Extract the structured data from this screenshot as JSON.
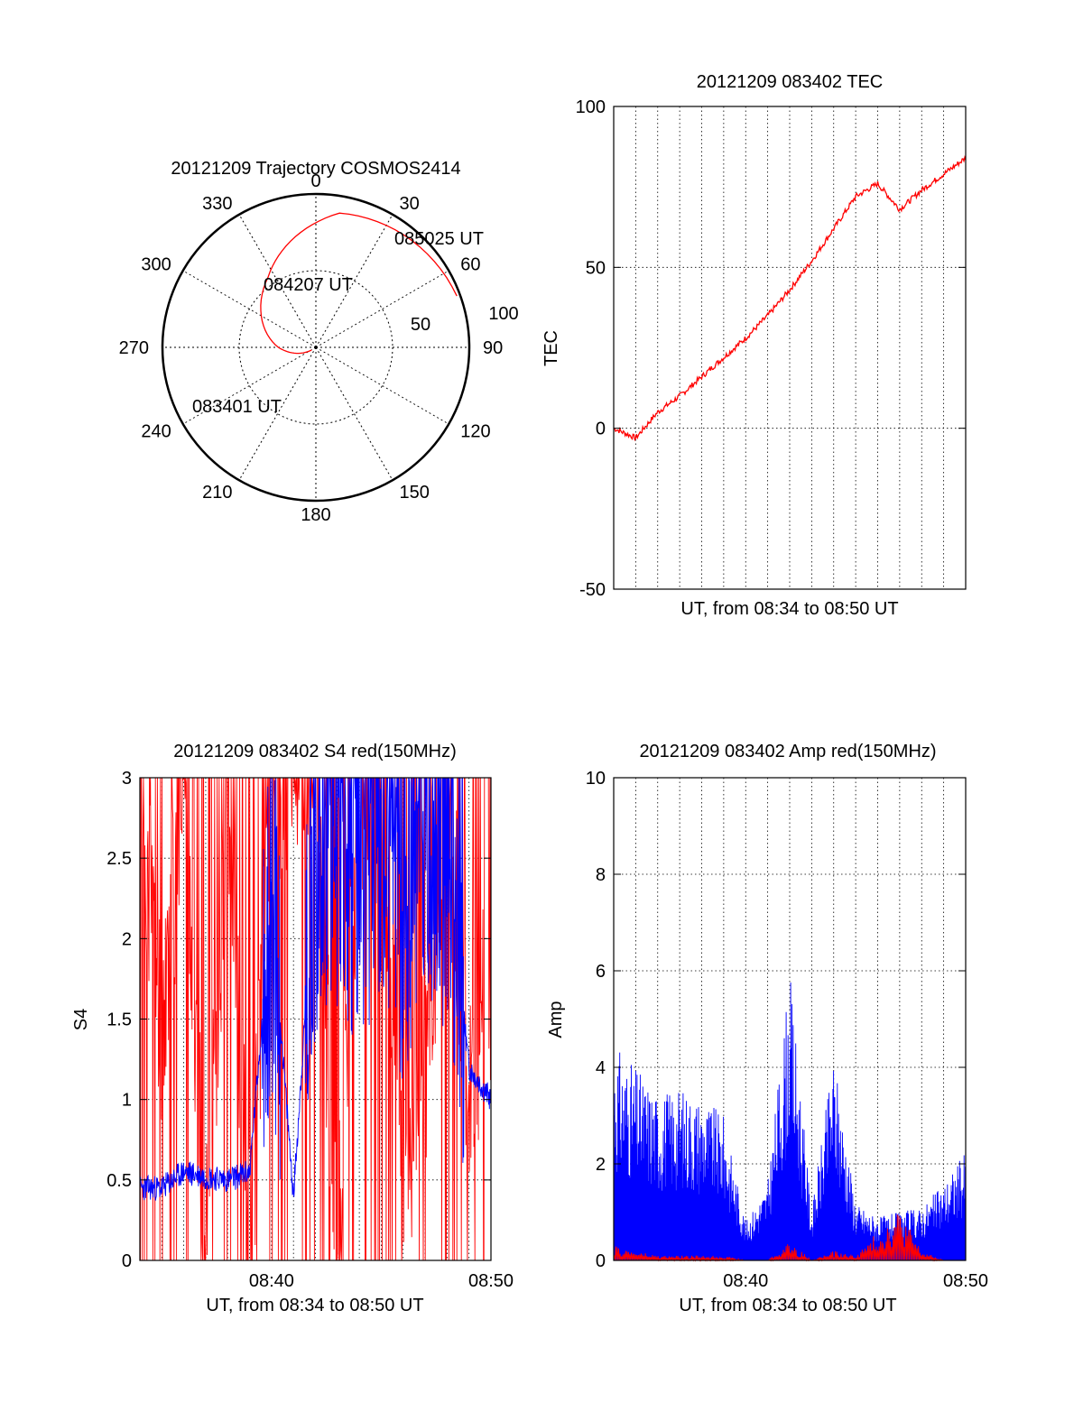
{
  "colors": {
    "red": "#ff0000",
    "blue": "#0000ff",
    "axis": "#000000",
    "grid": "#000000"
  },
  "chart_data": [
    {
      "type": "polar",
      "title": "20121209 Trajectory COSMOS2414",
      "azimuth_labels": [
        "0",
        "30",
        "60",
        "90",
        "120",
        "150",
        "180",
        "210",
        "240",
        "270",
        "300",
        "330"
      ],
      "radius_labels": [
        "50",
        "100"
      ],
      "grid": true,
      "series": [
        {
          "color": "#ff0000",
          "points": [
            {
              "az": 70,
              "el": 2,
              "time": "085025 UT"
            },
            {
              "az": 10,
              "el": 10
            },
            {
              "az": 326,
              "el": 40,
              "time": "084207 UT"
            },
            {
              "az": 270,
              "el": 68
            },
            {
              "az": 238,
              "el": 87,
              "time": "083401 UT"
            }
          ]
        }
      ],
      "annotations": [
        "085025 UT",
        "084207 UT",
        "083401 UT"
      ]
    },
    {
      "type": "line",
      "title": "20121209 083402 TEC",
      "xlabel": "UT, from 08:34 to 08:50 UT",
      "ylabel": "TEC",
      "xlim": [
        "08:34",
        "08:50"
      ],
      "ylim": [
        -50,
        100
      ],
      "yticks": [
        "-50",
        "0",
        "50",
        "100"
      ],
      "grid": true,
      "series": [
        {
          "color": "#ff0000",
          "x": [
            "08:34",
            "08:35",
            "08:36",
            "08:37",
            "08:38",
            "08:39",
            "08:40",
            "08:41",
            "08:42",
            "08:43",
            "08:44",
            "08:45",
            "08:46",
            "08:47",
            "08:48",
            "08:49",
            "08:50"
          ],
          "y": [
            0,
            -3,
            5,
            10,
            16,
            22,
            28,
            35,
            43,
            52,
            62,
            72,
            76,
            68,
            74,
            79,
            84
          ]
        }
      ]
    },
    {
      "type": "line",
      "title": "20121209 083402 S4 red(150MHz)",
      "xlabel": "UT, from 08:34 to 08:50 UT",
      "ylabel": "S4",
      "xlim": [
        "08:34",
        "08:50"
      ],
      "ylim": [
        0,
        3
      ],
      "xticks": [
        "08:40",
        "08:50"
      ],
      "yticks": [
        "0",
        "0.5",
        "1",
        "1.5",
        "2",
        "2.5",
        "3"
      ],
      "grid": true,
      "series": [
        {
          "color": "#ff0000",
          "x": [
            "08:34",
            "08:35",
            "08:36",
            "08:37",
            "08:38",
            "08:39",
            "08:40",
            "08:41",
            "08:42",
            "08:43",
            "08:44",
            "08:45",
            "08:46",
            "08:47",
            "08:48",
            "08:49",
            "08:50"
          ],
          "y": [
            3,
            1.5,
            3,
            0,
            3,
            0,
            3,
            3,
            3,
            0,
            3,
            3,
            0.6,
            1.2,
            3,
            1.0,
            1.8
          ]
        },
        {
          "color": "#0000ff",
          "x": [
            "08:34",
            "08:35",
            "08:36",
            "08:37",
            "08:38",
            "08:39",
            "08:40",
            "08:41",
            "08:42",
            "08:43",
            "08:44",
            "08:45",
            "08:46",
            "08:47",
            "08:48",
            "08:49",
            "08:50"
          ],
          "y": [
            0.45,
            0.45,
            0.55,
            0.52,
            0.5,
            0.55,
            2.2,
            0.4,
            2.5,
            2.6,
            2.4,
            2.7,
            2.2,
            2.8,
            2.5,
            1.2,
            1.0
          ]
        }
      ]
    },
    {
      "type": "line",
      "title": "20121209 083402 Amp red(150MHz)",
      "xlabel": "UT, from 08:34 to 08:50 UT",
      "ylabel": "Amp",
      "xlim": [
        "08:34",
        "08:50"
      ],
      "ylim": [
        0,
        10
      ],
      "xticks": [
        "08:40",
        "08:50"
      ],
      "yticks": [
        "0",
        "2",
        "4",
        "6",
        "8",
        "10"
      ],
      "grid": true,
      "series": [
        {
          "color": "#0000ff",
          "x": [
            "08:34",
            "08:35",
            "08:36",
            "08:37",
            "08:38",
            "08:39",
            "08:40",
            "08:41",
            "08:42",
            "08:43",
            "08:44",
            "08:45",
            "08:46",
            "08:47",
            "08:48",
            "08:49",
            "08:50"
          ],
          "y": [
            4.5,
            4.0,
            3.5,
            3.6,
            3.4,
            3.0,
            0.8,
            1.6,
            6.0,
            1.0,
            4.3,
            1.2,
            0.9,
            1.0,
            1.1,
            1.6,
            2.3
          ]
        },
        {
          "color": "#ff0000",
          "x": [
            "08:34",
            "08:35",
            "08:36",
            "08:37",
            "08:38",
            "08:39",
            "08:40",
            "08:41",
            "08:42",
            "08:43",
            "08:44",
            "08:45",
            "08:46",
            "08:47",
            "08:48",
            "08:49",
            "08:50"
          ],
          "y": [
            0.3,
            0.2,
            0.1,
            0.1,
            0.1,
            0.1,
            0,
            0,
            0.4,
            0,
            0.2,
            0.1,
            0.6,
            1.1,
            0.2,
            0,
            0
          ]
        }
      ]
    }
  ]
}
